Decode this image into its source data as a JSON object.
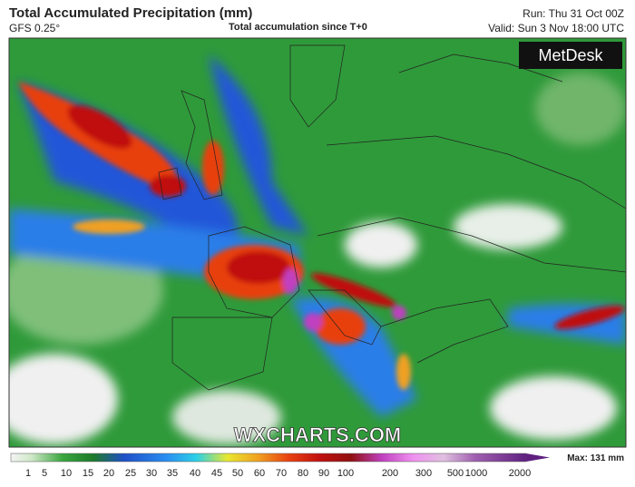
{
  "header": {
    "title": "Total Accumulated Precipitation (mm)",
    "model": "GFS 0.25°",
    "subtitle": "Total accumulation since T+0",
    "run": "Run: Thu 31 Oct 00Z",
    "valid": "Valid: Sun 3 Nov 18:00 UTC"
  },
  "logo": "MetDesk",
  "watermark": "WXCHARTS.COM",
  "legend": {
    "ticks": [
      "1",
      "5",
      "10",
      "15",
      "20",
      "25",
      "30",
      "35",
      "40",
      "45",
      "50",
      "60",
      "70",
      "80",
      "90",
      "100",
      "200",
      "300",
      "500",
      "1000",
      "2000"
    ],
    "max": "Max: 131 mm"
  }
}
